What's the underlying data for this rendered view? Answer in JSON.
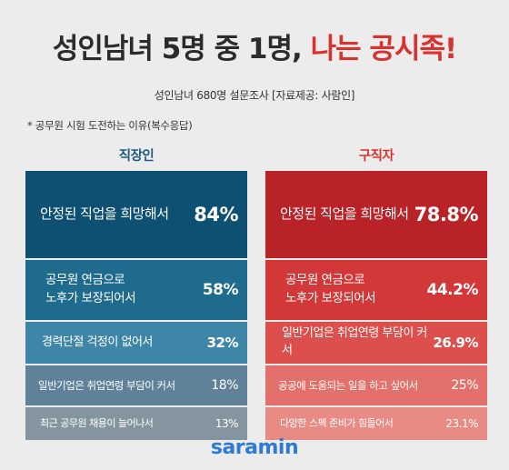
{
  "header": {
    "title_main": "성인남녀 5명 중 1명,",
    "title_highlight": "나는 공시족!",
    "subtitle": "성인남녀 680명 설문조사  [자료제공: 사람인]",
    "note": "* 공무원 시험 도전하는 이유(복수응답)"
  },
  "chart_data": [
    {
      "type": "table",
      "title": "직장인",
      "unit": "%",
      "colors": [
        "#0d5071",
        "#1f6b8e",
        "#3e86a8",
        "#5f8299",
        "#84959f"
      ],
      "items": [
        {
          "label": "안정된 직업을 희망해서",
          "value": 84,
          "value_text": "84%"
        },
        {
          "label": "공무원 연금으로\n노후가 보장되어서",
          "value": 58,
          "value_text": "58%"
        },
        {
          "label": "경력단절 걱정이 없어서",
          "value": 32,
          "value_text": "32%"
        },
        {
          "label": "일반기업은 취업연령 부담이 커서",
          "value": 18,
          "value_text": "18%"
        },
        {
          "label": "최근 공무원 채용이 늘어나서",
          "value": 13,
          "value_text": "13%"
        }
      ]
    },
    {
      "type": "table",
      "title": "구직자",
      "unit": "%",
      "colors": [
        "#b92227",
        "#d23838",
        "#dc4f4d",
        "#e4706b",
        "#e98b85"
      ],
      "items": [
        {
          "label": "안정된 직업을 희망해서",
          "value": 78.8,
          "value_text": "78.8%"
        },
        {
          "label": "공무원 연금으로\n노후가 보장되어서",
          "value": 44.2,
          "value_text": "44.2%"
        },
        {
          "label": "일반기업은 취업연령 부담이 커서",
          "value": 26.9,
          "value_text": "26.9%"
        },
        {
          "label": "공공에 도움되는 일을 하고 싶어서",
          "value": 25,
          "value_text": "25%"
        },
        {
          "label": "다양한 스펙 준비가 힘들어서",
          "value": 23.1,
          "value_text": "23.1%"
        }
      ]
    }
  ],
  "footer": {
    "logo_text": "saramin"
  }
}
